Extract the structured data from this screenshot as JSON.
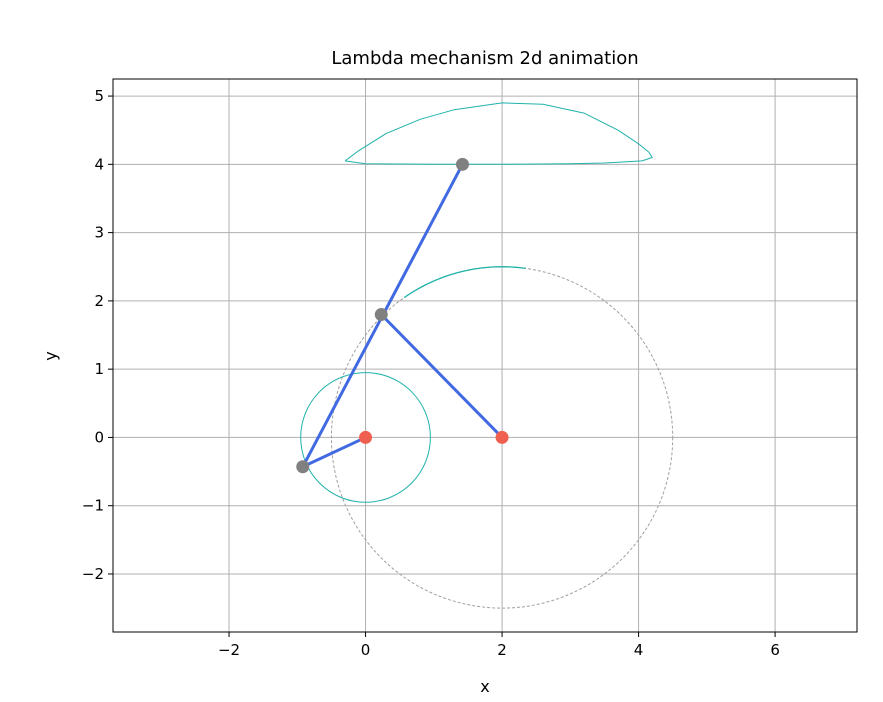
{
  "chart_data": {
    "type": "line",
    "title": "Lambda mechanism 2d animation",
    "xlabel": "x",
    "ylabel": "y",
    "xlim": [
      -3.7,
      7.2
    ],
    "ylim": [
      -2.85,
      5.25
    ],
    "xticks": [
      -2,
      0,
      2,
      4,
      6
    ],
    "yticks": [
      -2,
      -1,
      0,
      1,
      2,
      3,
      4,
      5
    ],
    "xtick_labels": [
      "−2",
      "0",
      "2",
      "4",
      "6"
    ],
    "ytick_labels": [
      "−2",
      "−1",
      "0",
      "1",
      "2",
      "3",
      "4",
      "5"
    ],
    "grid": true,
    "aspect": "equal",
    "colors": {
      "link": "#4169e1",
      "trace": "#20b2aa",
      "pivot": "#f06050",
      "joint": "#808080",
      "reference_circle": "#a0a0a0",
      "grid": "#b0b0b0"
    },
    "fixed_pivots": [
      {
        "x": 0,
        "y": 0
      },
      {
        "x": 2,
        "y": 0
      }
    ],
    "links": [
      {
        "from": [
          0,
          0
        ],
        "to": [
          -0.92,
          -0.43
        ]
      },
      {
        "from": [
          -0.92,
          -0.43
        ],
        "to": [
          1.42,
          4.0
        ]
      },
      {
        "from": [
          2,
          0
        ],
        "to": [
          0.23,
          1.8
        ]
      }
    ],
    "moving_joints": [
      {
        "x": -0.92,
        "y": -0.43
      },
      {
        "x": 0.23,
        "y": 1.8
      },
      {
        "x": 1.42,
        "y": 4.0
      }
    ],
    "crank_circle": {
      "cx": 0,
      "cy": 0,
      "r": 0.95
    },
    "reference_circle": {
      "cx": 2,
      "cy": 0,
      "r": 2.5
    },
    "rocker_arc": {
      "cx": 2,
      "cy": 0,
      "r": 2.5,
      "from_deg": 125,
      "to_deg": 82
    },
    "coupler_curve": [
      [
        -0.3,
        4.05
      ],
      [
        -0.1,
        4.2
      ],
      [
        0.3,
        4.45
      ],
      [
        0.8,
        4.66
      ],
      [
        1.3,
        4.8
      ],
      [
        2.0,
        4.9
      ],
      [
        2.6,
        4.88
      ],
      [
        3.2,
        4.75
      ],
      [
        3.7,
        4.5
      ],
      [
        4.0,
        4.3
      ],
      [
        4.15,
        4.18
      ],
      [
        4.2,
        4.1
      ],
      [
        4.05,
        4.05
      ],
      [
        3.5,
        4.02
      ],
      [
        3.0,
        4.01
      ],
      [
        2.0,
        4.0
      ],
      [
        1.0,
        4.0
      ],
      [
        0.0,
        4.01
      ],
      [
        -0.3,
        4.05
      ]
    ]
  }
}
